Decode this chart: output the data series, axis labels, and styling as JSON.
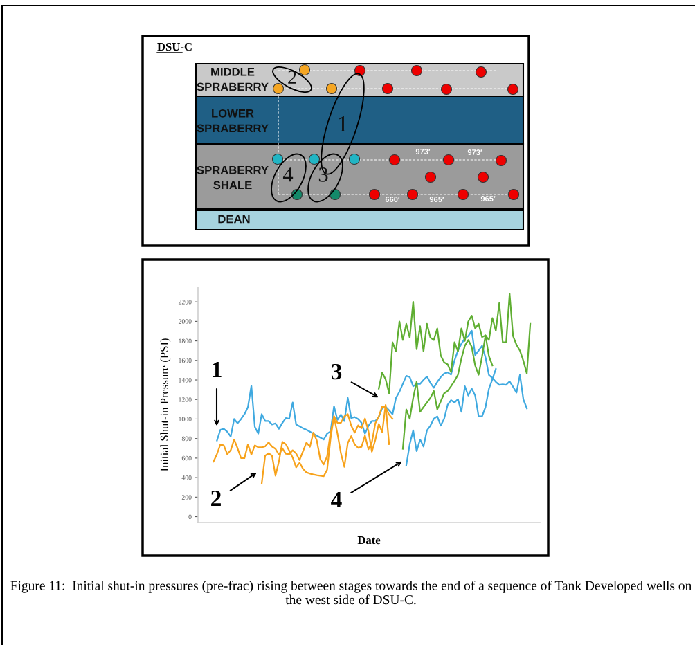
{
  "chart_data": [
    {
      "type": "other",
      "title": "DSU-C",
      "annotations": [
        "MIDDLE\nSPRABERRY",
        "LOWER\nSPRABERRY",
        "SPRABERRY\nSHALE",
        "DEAN",
        "2",
        "1",
        "4",
        "3",
        "973′",
        "973′",
        "660′",
        "965′",
        "965′"
      ]
    },
    {
      "type": "line",
      "xlabel": "Date",
      "ylabel": "Initial Shut-in Pressure (PSI)",
      "tick_labels": "y",
      "categories": [
        null,
        null,
        null,
        null,
        null,
        null,
        null,
        null,
        null,
        null,
        null,
        null,
        null,
        null,
        null,
        null,
        null,
        null,
        null,
        null,
        null,
        null,
        null,
        null,
        null,
        null,
        null,
        null,
        null,
        null,
        null,
        null,
        null,
        null,
        null,
        null,
        null,
        null,
        null,
        null,
        null,
        null,
        null,
        null,
        null,
        null,
        null,
        null,
        null,
        null,
        null,
        null,
        null,
        null,
        null,
        null,
        null,
        null,
        null,
        null,
        null,
        null,
        null,
        null,
        null,
        null,
        null,
        null,
        null,
        null,
        null,
        null,
        null,
        null,
        null,
        null,
        null,
        null,
        null,
        null,
        null,
        null,
        null,
        null,
        null,
        null,
        null,
        null,
        null,
        null,
        null,
        null,
        null,
        null,
        null,
        null,
        null,
        null,
        null
      ],
      "ylim": [
        -60,
        2350
      ],
      "yticks": [
        0,
        200,
        400,
        600,
        800,
        1000,
        1200,
        1400,
        1600,
        1800,
        2000,
        2200
      ],
      "series": [
        {
          "color": "#3fa9e0",
          "values": [
            null,
            null,
            null,
            null,
            null,
            780,
            890,
            900,
            870,
            820,
            1000,
            956,
            1000,
            1050,
            1122,
            1340,
            920,
            850,
            1050,
            980,
            979,
            944,
            955,
            900,
            960,
            1010,
            1003,
            1169,
            944,
            925,
            905,
            890,
            870,
            850,
            830,
            810,
            790,
            850,
            873,
            1130,
            991,
            1045,
            979,
            1216,
            1010,
            1020,
            1000,
            960,
            850,
            930,
            979,
            979,
            1020,
            1110,
            1125,
            1090,
            1050,
            1216,
            1280,
            1360,
            1442,
            1430,
            1335,
            1360,
            1360,
            1400,
            1435,
            1370,
            1320,
            1380,
            1430,
            1465,
            1477,
            1455,
            1600,
            1700,
            1770,
            1825,
            1850,
            1904,
            1655,
            1700,
            1750,
            1630,
            1450,
            1420,
            1380,
            1350,
            1355,
            1350,
            1385,
            1330,
            1270,
            1453,
            1200,
            1110,
            null,
            null,
            null
          ]
        },
        {
          "color": "#f7a21b",
          "values": [
            null,
            null,
            null,
            null,
            564,
            640,
            740,
            730,
            640,
            680,
            790,
            700,
            600,
            600,
            740,
            635,
            730,
            710,
            710,
            720,
            760,
            718,
            695,
            635,
            700,
            645,
            640,
            680,
            647,
            580,
            670,
            760,
            715,
            860,
            780,
            590,
            535,
            620,
            860,
            1020,
            850,
            650,
            510,
            755,
            825,
            740,
            705,
            715,
            830,
            690,
            760,
            956,
            1025,
            1130,
            1120,
            1045,
            1003,
            null,
            null,
            null,
            null,
            null,
            null,
            null,
            null,
            null,
            null,
            null,
            null,
            null,
            null,
            null,
            null,
            null,
            null,
            null,
            null,
            null,
            null,
            null,
            null,
            null,
            null,
            null,
            null,
            null,
            null,
            null,
            null,
            null,
            null,
            null,
            null,
            null,
            null,
            null,
            null,
            null,
            null
          ]
        },
        {
          "color": "#f7a21b",
          "values": [
            null,
            null,
            null,
            null,
            null,
            null,
            null,
            null,
            null,
            null,
            null,
            null,
            null,
            null,
            null,
            null,
            null,
            null,
            339,
            625,
            650,
            624,
            420,
            565,
            766,
            742,
            675,
            605,
            505,
            552,
            490,
            453,
            441,
            432,
            425,
            420,
            414,
            480,
            800,
            1030,
            960,
            960,
            1027,
            1050,
            932,
            860,
            935,
            905,
            1005,
            875,
            665,
            785,
            950,
            866,
            1145,
            742,
            null,
            null,
            null,
            null,
            null,
            null,
            null,
            null,
            null,
            null,
            null,
            null,
            null,
            null,
            null,
            null,
            null,
            null,
            null,
            null,
            null,
            null,
            null,
            null,
            null,
            null,
            null,
            null,
            null,
            null,
            null,
            null,
            null,
            null,
            null,
            null,
            null,
            null,
            null,
            null,
            null,
            null,
            null
          ]
        },
        {
          "color": "#5fae32",
          "values": [
            null,
            null,
            null,
            null,
            null,
            null,
            null,
            null,
            null,
            null,
            null,
            null,
            null,
            null,
            null,
            null,
            null,
            null,
            null,
            null,
            null,
            null,
            null,
            null,
            null,
            null,
            null,
            null,
            null,
            null,
            null,
            null,
            null,
            null,
            null,
            null,
            null,
            null,
            null,
            null,
            null,
            null,
            null,
            null,
            null,
            null,
            null,
            null,
            null,
            null,
            null,
            null,
            1311,
            1477,
            1406,
            1264,
            1785,
            1691,
            1999,
            1809,
            1975,
            1833,
            2200,
            1714,
            1951,
            1691,
            1975,
            1833,
            1809,
            1928,
            1650,
            1580,
            1560,
            1480,
            1785,
            1691,
            1928,
            1800,
            1999,
            2058,
            1928,
            1975,
            1840,
            1856,
            1809,
            2034,
            1904,
            2188,
            1785,
            1785,
            2283,
            1850,
            1760,
            1700,
            1596,
            1465,
            1975,
            null,
            null
          ]
        },
        {
          "color": "#5fae32",
          "values": [
            null,
            null,
            null,
            null,
            null,
            null,
            null,
            null,
            null,
            null,
            null,
            null,
            null,
            null,
            null,
            null,
            null,
            null,
            null,
            null,
            null,
            null,
            null,
            null,
            null,
            null,
            null,
            null,
            null,
            null,
            null,
            null,
            null,
            null,
            null,
            null,
            null,
            null,
            null,
            null,
            null,
            null,
            null,
            null,
            null,
            null,
            null,
            null,
            null,
            null,
            null,
            null,
            null,
            null,
            null,
            null,
            null,
            null,
            null,
            695,
            1098,
            1003,
            1216,
            1382,
            1074,
            1122,
            1169,
            1216,
            1287,
            1098,
            1180,
            1264,
            1287,
            1335,
            1390,
            1453,
            1619,
            1750,
            1809,
            1738,
            1548,
            1453,
            1640,
            1856,
            1643,
            1548,
            null,
            null,
            null,
            null,
            null,
            null,
            null,
            null,
            null,
            null,
            null,
            null,
            null
          ]
        },
        {
          "color": "#3fa9e0",
          "values": [
            null,
            null,
            null,
            null,
            null,
            null,
            null,
            null,
            null,
            null,
            null,
            null,
            null,
            null,
            null,
            null,
            null,
            null,
            null,
            null,
            null,
            null,
            null,
            null,
            null,
            null,
            null,
            null,
            null,
            null,
            null,
            null,
            null,
            null,
            null,
            null,
            null,
            null,
            null,
            null,
            null,
            null,
            null,
            null,
            null,
            null,
            null,
            null,
            null,
            null,
            null,
            null,
            null,
            null,
            null,
            null,
            null,
            null,
            null,
            null,
            529,
            742,
            884,
            671,
            790,
            718,
            884,
            932,
            1003,
            1027,
            932,
            1003,
            1145,
            1193,
            1169,
            1204,
            1074,
            1335,
            1240,
            1311,
            1240,
            1027,
            1027,
            1122,
            1311,
            1406,
            1513,
            null,
            null,
            null,
            null,
            null,
            null,
            null,
            null,
            null,
            null,
            null,
            null
          ]
        }
      ],
      "annotations": [
        "1",
        "2",
        "3",
        "4",
        "Figure 11:  Initial shut-in pressures (pre-frac) rising between stages towards the end of a sequence of Tank Developed wells on the west side of DSU-C."
      ]
    }
  ]
}
